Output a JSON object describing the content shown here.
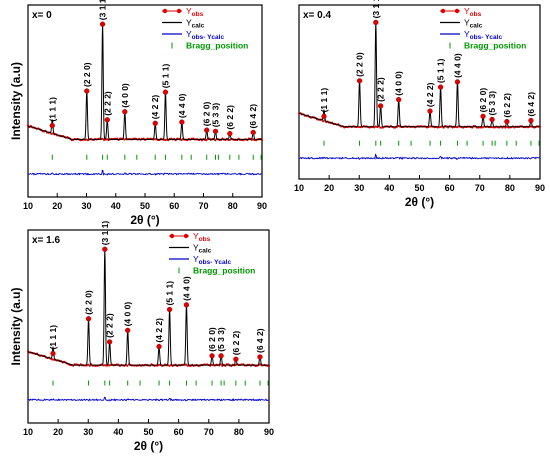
{
  "chart_data": [
    {
      "type": "line",
      "panel_label": "x= 0",
      "xlabel": "2θ (°)",
      "ylabel": "Intensity (a.u)",
      "xlim": [
        10,
        90
      ],
      "xticks": [
        10,
        20,
        30,
        40,
        50,
        60,
        70,
        80,
        90
      ],
      "legend": {
        "position": "top-right",
        "entries": [
          {
            "name": "Yobs",
            "base": "Y",
            "sub": "obs",
            "color": "#e00000",
            "marker": "circle"
          },
          {
            "name": "Ycalc",
            "base": "Y",
            "sub": "calc",
            "color": "#000000",
            "marker": "line"
          },
          {
            "name": "Yobs- Ycalc",
            "base": "Y",
            "sub": "obs- Ycalc",
            "color": "#0000cc",
            "marker": "line"
          },
          {
            "name": "Bragg_position",
            "base": "Bragg_position",
            "sub": "",
            "color": "#009900",
            "marker": "tick"
          }
        ]
      },
      "series": [
        {
          "name": "Yobs",
          "x": [
            18.3,
            30.1,
            35.5,
            37.1,
            43.1,
            53.5,
            57.0,
            62.6,
            71.1,
            74.1,
            79.0,
            87.0
          ],
          "y": [
            0.12,
            0.42,
            1.0,
            0.17,
            0.24,
            0.14,
            0.41,
            0.15,
            0.08,
            0.07,
            0.05,
            0.06
          ]
        }
      ],
      "peaks": [
        {
          "label": "(1 1 1)",
          "x": 18.3,
          "y": 0.12
        },
        {
          "label": "(2 2 0)",
          "x": 30.1,
          "y": 0.42
        },
        {
          "label": "(3 1 1)",
          "x": 35.5,
          "y": 1.0
        },
        {
          "label": "(2 2 2)",
          "x": 37.1,
          "y": 0.17
        },
        {
          "label": "(4 0 0)",
          "x": 43.1,
          "y": 0.24
        },
        {
          "label": "(4 2 2)",
          "x": 53.5,
          "y": 0.14
        },
        {
          "label": "(5 1 1)",
          "x": 57.0,
          "y": 0.41
        },
        {
          "label": "(4 4 0)",
          "x": 62.6,
          "y": 0.15
        },
        {
          "label": "(6 2 0)",
          "x": 71.1,
          "y": 0.08
        },
        {
          "label": "(5 3 3)",
          "x": 74.1,
          "y": 0.07
        },
        {
          "label": "(6 2 2)",
          "x": 79.0,
          "y": 0.05
        },
        {
          "label": "(6 4 2)",
          "x": 87.0,
          "y": 0.06
        }
      ],
      "bragg_positions": [
        18.3,
        30.1,
        35.5,
        37.1,
        43.1,
        47.2,
        53.5,
        57.0,
        62.6,
        65.8,
        71.1,
        74.1,
        75.1,
        79.0,
        82.1,
        87.0,
        89.7
      ]
    },
    {
      "type": "line",
      "panel_label": "x= 0.4",
      "xlabel": "2θ (°)",
      "ylabel": "",
      "xlim": [
        10,
        90
      ],
      "xticks": [
        10,
        20,
        30,
        40,
        50,
        60,
        70,
        80,
        90
      ],
      "legend": {
        "position": "top-right",
        "entries": [
          {
            "name": "Yobs",
            "base": "Y",
            "sub": "obs",
            "color": "#e00000",
            "marker": "circle"
          },
          {
            "name": "Ycalc",
            "base": "Y",
            "sub": "calc",
            "color": "#000000",
            "marker": "line"
          },
          {
            "name": "Yobs- Ycalc",
            "base": "Y",
            "sub": "obs- Ycalc",
            "color": "#0000cc",
            "marker": "line"
          },
          {
            "name": "Bragg_position",
            "base": "Bragg_position",
            "sub": "",
            "color": "#009900",
            "marker": "tick"
          }
        ]
      },
      "series": [
        {
          "name": "Yobs",
          "x": [
            18.3,
            30.1,
            35.5,
            37.1,
            43.1,
            53.5,
            57.0,
            62.6,
            71.1,
            74.1,
            79.0,
            87.0
          ],
          "y": [
            0.1,
            0.44,
            1.0,
            0.2,
            0.26,
            0.15,
            0.38,
            0.43,
            0.1,
            0.07,
            0.05,
            0.06
          ]
        }
      ],
      "peaks": [
        {
          "label": "(1 1 1)",
          "x": 18.3,
          "y": 0.1
        },
        {
          "label": "(2 2 0)",
          "x": 30.1,
          "y": 0.44
        },
        {
          "label": "(3 1 1)",
          "x": 35.5,
          "y": 1.0
        },
        {
          "label": "(2 2 2)",
          "x": 37.1,
          "y": 0.2
        },
        {
          "label": "(4 0 0)",
          "x": 43.1,
          "y": 0.26
        },
        {
          "label": "(4 2 2)",
          "x": 53.5,
          "y": 0.15
        },
        {
          "label": "(5 1 1)",
          "x": 57.0,
          "y": 0.38
        },
        {
          "label": "(4 4 0)",
          "x": 62.6,
          "y": 0.43
        },
        {
          "label": "(6 2 0)",
          "x": 71.1,
          "y": 0.1
        },
        {
          "label": "(5 3 3)",
          "x": 74.1,
          "y": 0.07
        },
        {
          "label": "(6 2 2)",
          "x": 79.0,
          "y": 0.05
        },
        {
          "label": "(6 4 2)",
          "x": 87.0,
          "y": 0.06
        }
      ],
      "bragg_positions": [
        18.3,
        30.1,
        35.5,
        37.1,
        43.1,
        47.2,
        53.5,
        57.0,
        62.6,
        65.8,
        71.1,
        74.1,
        75.1,
        79.0,
        82.1,
        87.0,
        89.7
      ]
    },
    {
      "type": "line",
      "panel_label": "x= 1.6",
      "xlabel": "2θ (°)",
      "ylabel": "Intensity (a.u)",
      "xlim": [
        10,
        90
      ],
      "xticks": [
        10,
        20,
        30,
        40,
        50,
        60,
        70,
        80,
        90
      ],
      "legend": {
        "position": "top-right",
        "entries": [
          {
            "name": "Yobs",
            "base": "Y",
            "sub": "obs",
            "color": "#e00000",
            "marker": "circle"
          },
          {
            "name": "Ycalc",
            "base": "Y",
            "sub": "calc",
            "color": "#000000",
            "marker": "line"
          },
          {
            "name": "Yobs- Ycalc",
            "base": "Y",
            "sub": "obs- Ycalc",
            "color": "#0000cc",
            "marker": "line"
          },
          {
            "name": "Bragg_position",
            "base": "Bragg_position",
            "sub": "",
            "color": "#009900",
            "marker": "tick"
          }
        ]
      },
      "series": [
        {
          "name": "Yobs",
          "x": [
            18.3,
            30.1,
            35.5,
            37.1,
            43.1,
            53.5,
            57.0,
            62.6,
            71.1,
            74.1,
            79.0,
            87.0
          ],
          "y": [
            0.1,
            0.4,
            1.0,
            0.2,
            0.3,
            0.16,
            0.48,
            0.52,
            0.08,
            0.08,
            0.05,
            0.07
          ]
        }
      ],
      "peaks": [
        {
          "label": "(1 1 1)",
          "x": 18.3,
          "y": 0.1
        },
        {
          "label": "(2 2 0)",
          "x": 30.1,
          "y": 0.4
        },
        {
          "label": "(3 1 1)",
          "x": 35.5,
          "y": 1.0
        },
        {
          "label": "(2 2 2)",
          "x": 37.1,
          "y": 0.2
        },
        {
          "label": "(4 0 0)",
          "x": 43.1,
          "y": 0.3
        },
        {
          "label": "(4 2 2)",
          "x": 53.5,
          "y": 0.16
        },
        {
          "label": "(5 1 1)",
          "x": 57.0,
          "y": 0.48
        },
        {
          "label": "(4 4 0)",
          "x": 62.6,
          "y": 0.52
        },
        {
          "label": "(6 2 0)",
          "x": 71.1,
          "y": 0.08
        },
        {
          "label": "(5 3 3)",
          "x": 74.1,
          "y": 0.08
        },
        {
          "label": "(6 2 2)",
          "x": 79.0,
          "y": 0.05
        },
        {
          "label": "(6 4 2)",
          "x": 87.0,
          "y": 0.07
        }
      ],
      "bragg_positions": [
        18.3,
        30.1,
        35.5,
        37.1,
        43.1,
        47.2,
        53.5,
        57.0,
        62.6,
        65.8,
        71.1,
        74.1,
        75.1,
        79.0,
        82.1,
        87.0,
        89.7
      ]
    }
  ]
}
